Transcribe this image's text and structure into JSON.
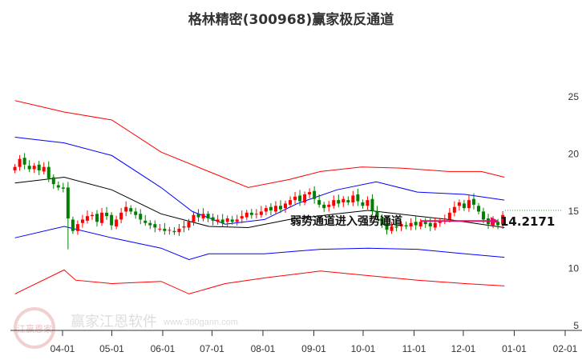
{
  "chart_data": {
    "type": "candlestick-channel",
    "title": "格林精密(300968)赢家极反通道",
    "x_unit": "days since 03-01",
    "x_ticks": [
      {
        "day": 31,
        "label": "04-01"
      },
      {
        "day": 61,
        "label": "05-01"
      },
      {
        "day": 92,
        "label": "06-01"
      },
      {
        "day": 122,
        "label": "07-01"
      },
      {
        "day": 153,
        "label": "08-01"
      },
      {
        "day": 184,
        "label": "09-01"
      },
      {
        "day": 214,
        "label": "10-01"
      },
      {
        "day": 245,
        "label": "11-01"
      },
      {
        "day": 275,
        "label": "12-01"
      },
      {
        "day": 306,
        "label": "01-01"
      },
      {
        "day": 337,
        "label": "02-01"
      }
    ],
    "y_ticks": [
      5,
      10,
      15,
      20,
      25
    ],
    "ylim": [
      5,
      25.5
    ],
    "closes_start_day": 2,
    "closes_end_day": 299,
    "closes": [
      18.8,
      19.5,
      19.0,
      18.6,
      18.9,
      18.5,
      18.8,
      17.8,
      17.3,
      17.0,
      16.9,
      14.3,
      13.2,
      13.8,
      14.2,
      14.5,
      14.6,
      14.0,
      14.8,
      14.5,
      13.7,
      14.2,
      14.8,
      15.3,
      14.9,
      14.6,
      14.2,
      13.9,
      13.7,
      13.5,
      13.4,
      13.2,
      13.3,
      13.1,
      13.4,
      13.6,
      14.0,
      14.6,
      14.4,
      14.7,
      14.3,
      14.1,
      14.2,
      13.9,
      14.3,
      14.0,
      14.2,
      14.5,
      14.8,
      14.6,
      14.7,
      14.9,
      15.2,
      15.0,
      15.4,
      15.1,
      15.6,
      15.9,
      16.2,
      15.8,
      16.4,
      16.6,
      16.0,
      15.5,
      15.2,
      15.5,
      15.9,
      15.6,
      16.0,
      15.7,
      16.3,
      15.8,
      15.4,
      15.9,
      15.0,
      14.4,
      13.8,
      13.3,
      13.6,
      13.5,
      13.8,
      13.6,
      13.9,
      13.7,
      14.0,
      13.8,
      13.6,
      13.9,
      14.1,
      14.3,
      14.8,
      15.3,
      15.7,
      15.2,
      15.9,
      15.5,
      14.9,
      14.2,
      13.8,
      14.0,
      13.7,
      14.6
    ],
    "bands": {
      "outer_upper": {
        "color": "#ff0000",
        "days": [
          2,
          32,
          61,
          91,
          120,
          144,
          169,
          188,
          213,
          237,
          266,
          286,
          300
        ],
        "values": [
          24.6,
          23.6,
          22.9,
          20.1,
          18.4,
          17.0,
          17.7,
          18.4,
          18.8,
          18.7,
          18.4,
          18.4,
          17.9
        ]
      },
      "inner_upper": {
        "color": "#0000ff",
        "days": [
          2,
          32,
          61,
          91,
          110,
          130,
          154,
          174,
          198,
          222,
          247,
          276,
          300
        ],
        "values": [
          21.4,
          20.9,
          19.8,
          17.0,
          14.9,
          13.8,
          14.2,
          15.6,
          16.8,
          17.5,
          16.6,
          16.4,
          15.9
        ]
      },
      "middle": {
        "color": "#000000",
        "days": [
          2,
          32,
          61,
          91,
          120,
          144,
          169,
          198,
          217,
          247,
          266,
          300
        ],
        "values": [
          17.4,
          17.9,
          16.8,
          14.7,
          13.6,
          13.5,
          14.2,
          14.7,
          15.0,
          14.5,
          14.2,
          13.5
        ]
      },
      "inner_lower": {
        "color": "#0000ff",
        "days": [
          2,
          32,
          61,
          91,
          108,
          120,
          154,
          188,
          217,
          247,
          276,
          300
        ],
        "values": [
          12.6,
          13.6,
          12.6,
          11.7,
          10.7,
          11.2,
          11.2,
          11.6,
          11.7,
          11.6,
          11.2,
          10.9
        ]
      },
      "outer_lower": {
        "color": "#ff0000",
        "days": [
          2,
          32,
          39,
          61,
          91,
          108,
          130,
          154,
          188,
          217,
          247,
          276,
          300
        ],
        "values": [
          7.7,
          9.8,
          8.9,
          8.6,
          8.8,
          7.7,
          8.6,
          9.1,
          9.7,
          9.3,
          8.9,
          8.6,
          8.4
        ]
      }
    },
    "annotation": "弱势通道进入强势通道",
    "last_value_label": "14.2171",
    "last_value": 14.2171,
    "colors": {
      "up": "#ff0000",
      "down": "#008000",
      "arrow": "#e0106a"
    }
  },
  "watermark": {
    "brand": "赢家江恩软件",
    "url": "www.360gann.com",
    "seal": "江赢恩家"
  }
}
